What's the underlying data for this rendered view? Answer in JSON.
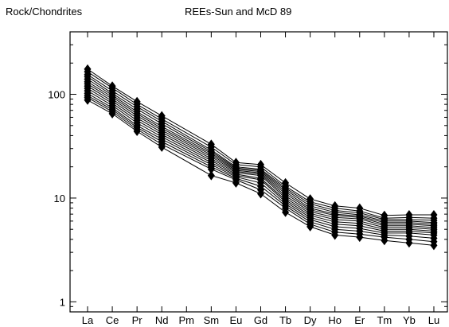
{
  "chart_data": {
    "type": "line",
    "title": "REEs-Sun and McD 89",
    "ylabel": "Rock/Chondrites",
    "xlabel": "",
    "categories": [
      "La",
      "Ce",
      "Pr",
      "Nd",
      "Pm",
      "Sm",
      "Eu",
      "Gd",
      "Tb",
      "Dy",
      "Ho",
      "Er",
      "Tm",
      "Yb",
      "Lu"
    ],
    "y_scale": "log",
    "ylim": [
      0.8,
      400
    ],
    "y_ticks": [
      {
        "value": 1,
        "label": "1"
      },
      {
        "value": 10,
        "label": "10"
      },
      {
        "value": 100,
        "label": "100"
      }
    ],
    "grid": false,
    "legend": "none",
    "marker": "diamond",
    "line_color": "#000000",
    "series": [
      {
        "values": [
          175,
          120,
          85,
          62,
          null,
          33,
          22,
          21,
          14,
          9.8,
          8.4,
          8.0,
          6.8,
          6.9,
          6.9
        ]
      },
      {
        "values": [
          165,
          115,
          80,
          58,
          null,
          31,
          21,
          20,
          13,
          9.2,
          8.0,
          7.5,
          6.4,
          6.5,
          6.4
        ]
      },
      {
        "values": [
          155,
          108,
          76,
          55,
          null,
          29,
          20,
          19,
          12.5,
          8.8,
          7.6,
          7.2,
          6.2,
          6.2,
          6.1
        ]
      },
      {
        "values": [
          148,
          102,
          72,
          52,
          null,
          28,
          19.5,
          18.5,
          12,
          8.4,
          7.3,
          6.9,
          6.0,
          6.0,
          5.8
        ]
      },
      {
        "values": [
          140,
          98,
          68,
          49,
          null,
          27,
          19,
          18,
          11.5,
          8.0,
          7.0,
          6.7,
          5.8,
          5.8,
          5.6
        ]
      },
      {
        "values": [
          132,
          94,
          65,
          47,
          null,
          26,
          18.5,
          17.5,
          11,
          7.7,
          6.8,
          6.5,
          5.6,
          5.6,
          5.4
        ]
      },
      {
        "values": [
          126,
          90,
          62,
          45,
          null,
          25,
          18,
          17,
          10.5,
          7.4,
          6.5,
          6.3,
          5.4,
          5.4,
          5.2
        ]
      },
      {
        "values": [
          120,
          86,
          59,
          43,
          null,
          24,
          17.5,
          16.5,
          10,
          7.1,
          6.2,
          6.0,
          5.2,
          5.2,
          5.0
        ]
      },
      {
        "values": [
          114,
          82,
          56,
          41,
          null,
          23,
          17,
          15.5,
          9.6,
          6.8,
          5.9,
          5.7,
          5.0,
          5.0,
          4.8
        ]
      },
      {
        "values": [
          108,
          78,
          53,
          39,
          null,
          22,
          16.5,
          15,
          9.2,
          6.5,
          5.6,
          5.4,
          4.8,
          4.8,
          4.6
        ]
      },
      {
        "values": [
          102,
          74,
          50,
          37,
          null,
          21,
          16,
          14,
          8.8,
          6.2,
          5.3,
          5.1,
          4.6,
          4.6,
          4.4
        ]
      },
      {
        "values": [
          97,
          71,
          48,
          35,
          null,
          20,
          15.5,
          13,
          8.4,
          5.9,
          5.0,
          4.8,
          4.4,
          4.3,
          4.1
        ]
      },
      {
        "values": [
          93,
          68,
          46,
          33,
          null,
          19,
          15,
          12,
          8.0,
          5.6,
          4.7,
          4.5,
          4.2,
          4.0,
          3.8
        ]
      },
      {
        "values": [
          88,
          65,
          44,
          31,
          null,
          16.5,
          14,
          11,
          7.3,
          5.3,
          4.4,
          4.2,
          3.9,
          3.7,
          3.5
        ]
      }
    ]
  }
}
